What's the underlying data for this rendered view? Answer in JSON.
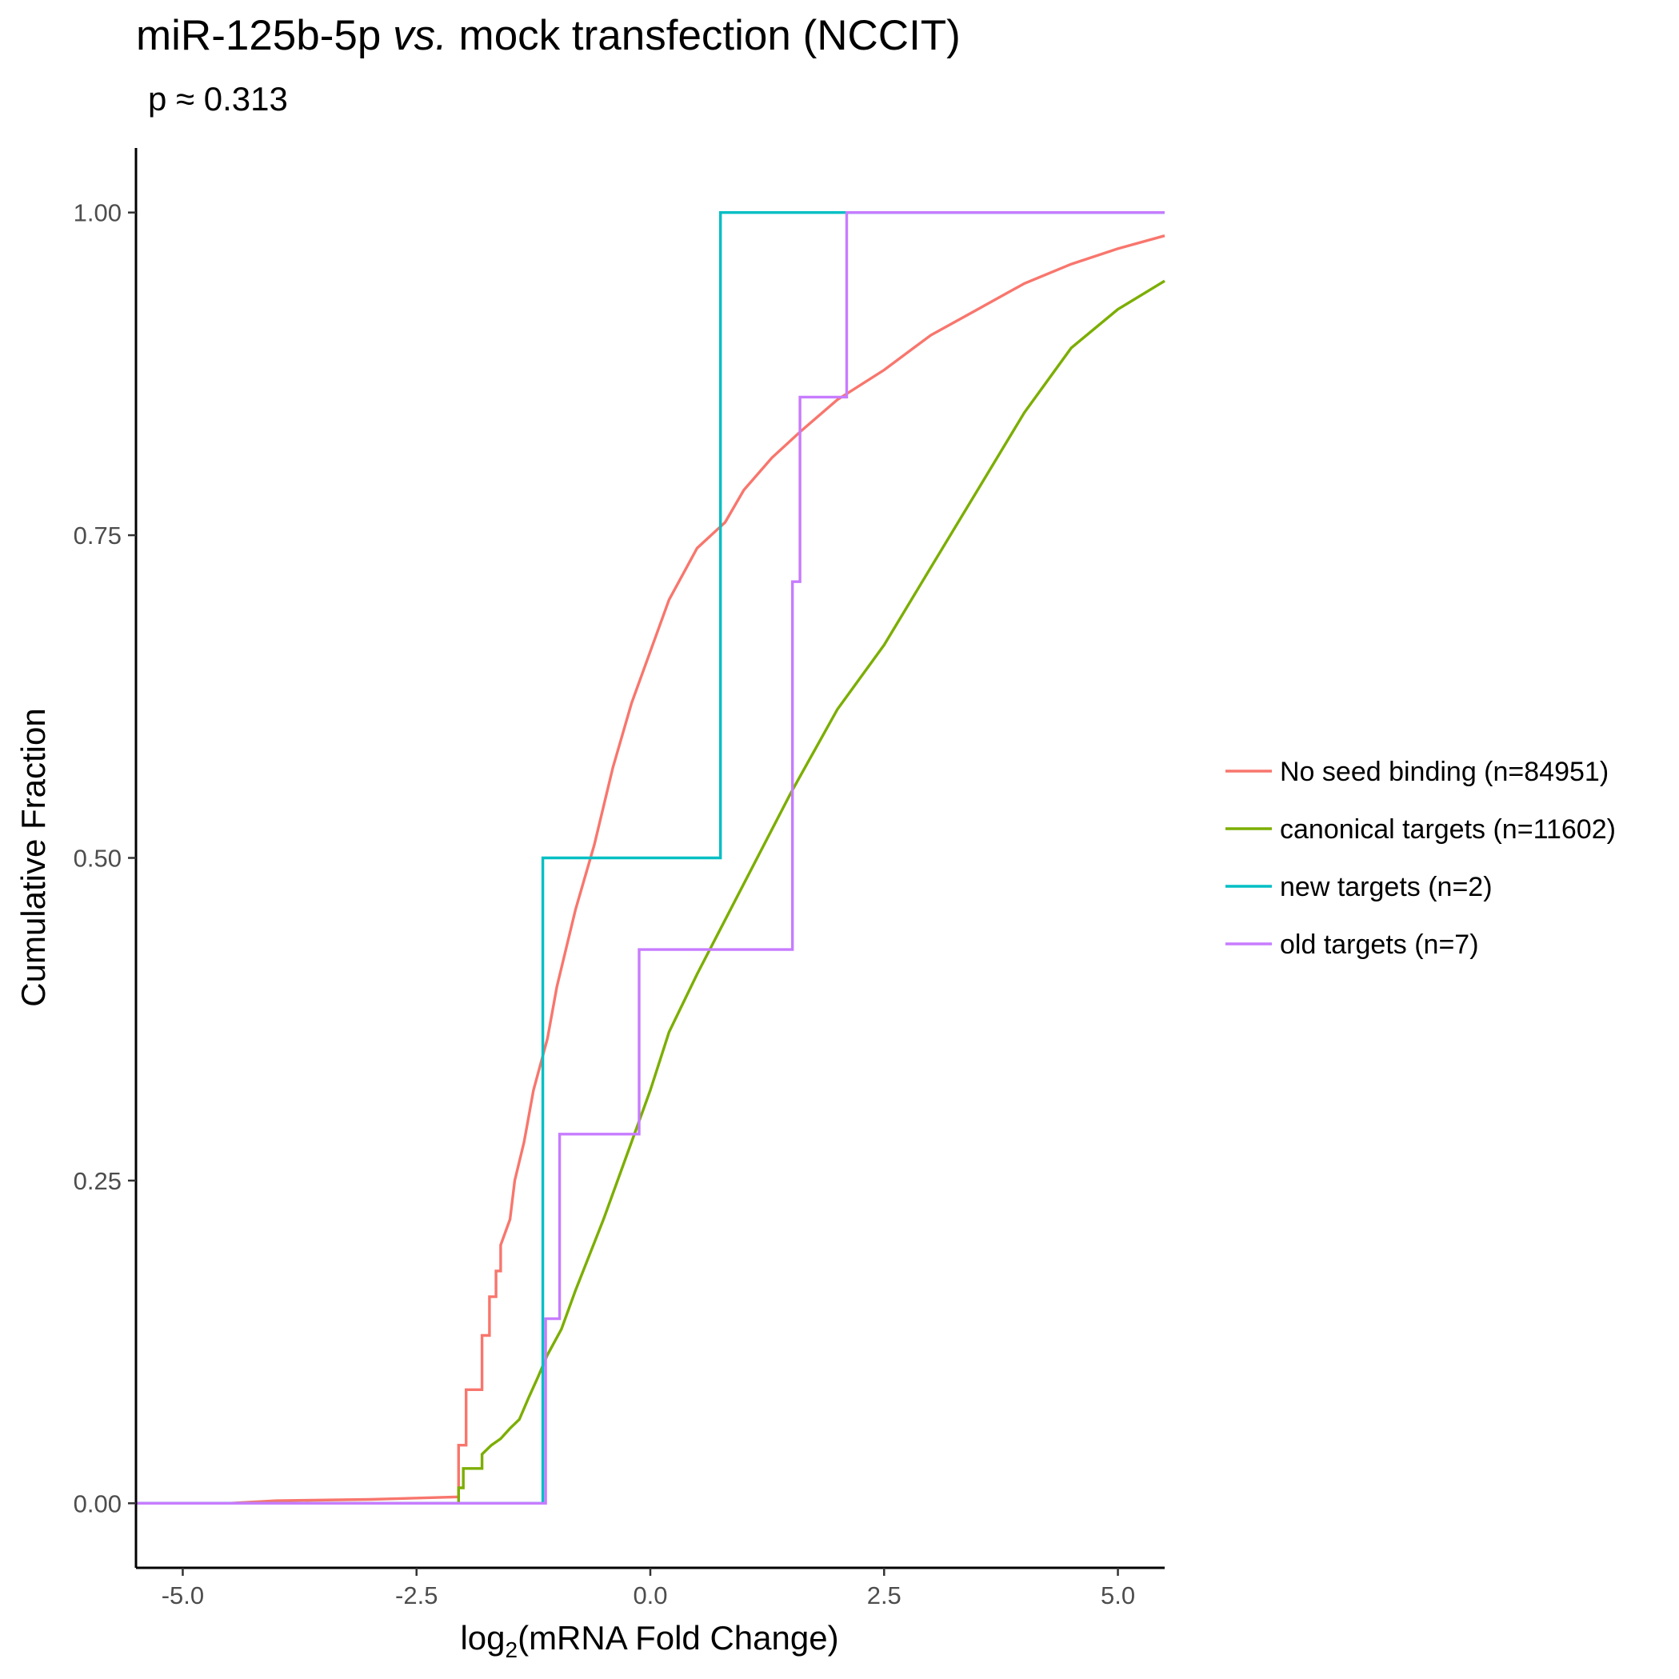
{
  "chart_data": {
    "type": "line",
    "title": {
      "part1": "miR-125b-5p ",
      "part2_italic": "vs.",
      "part3": " mock transfection (NCCIT)"
    },
    "subtitle": "p ≈ 0.313",
    "xlabel": {
      "prefix": "log",
      "subscript": "2",
      "suffix": "(mRNA Fold Change)"
    },
    "ylabel": "Cumulative Fraction",
    "xlim": [
      -5.5,
      5.5
    ],
    "ylim": [
      -0.05,
      1.05
    ],
    "x_ticks": [
      -5.0,
      -2.5,
      0.0,
      2.5,
      5.0
    ],
    "x_tick_labels": [
      "-5.0",
      "-2.5",
      "0.0",
      "2.5",
      "5.0"
    ],
    "y_ticks": [
      0.0,
      0.25,
      0.5,
      0.75,
      1.0
    ],
    "y_tick_labels": [
      "0.00",
      "0.25",
      "0.50",
      "0.75",
      "1.00"
    ],
    "grid": false,
    "legend_position": "right",
    "series": [
      {
        "name": "No seed binding (n=84951)",
        "color": "#F8766D",
        "step": false,
        "points": [
          [
            -5.5,
            0.0
          ],
          [
            -4.5,
            0.0
          ],
          [
            -4.0,
            0.002
          ],
          [
            -3.0,
            0.003
          ],
          [
            -2.05,
            0.005
          ],
          [
            -2.05,
            0.045
          ],
          [
            -1.97,
            0.045
          ],
          [
            -1.97,
            0.088
          ],
          [
            -1.8,
            0.088
          ],
          [
            -1.8,
            0.13
          ],
          [
            -1.72,
            0.13
          ],
          [
            -1.72,
            0.16
          ],
          [
            -1.65,
            0.16
          ],
          [
            -1.65,
            0.18
          ],
          [
            -1.6,
            0.18
          ],
          [
            -1.6,
            0.2
          ],
          [
            -1.5,
            0.22
          ],
          [
            -1.45,
            0.25
          ],
          [
            -1.35,
            0.28
          ],
          [
            -1.25,
            0.32
          ],
          [
            -1.1,
            0.36
          ],
          [
            -1.0,
            0.4
          ],
          [
            -0.8,
            0.46
          ],
          [
            -0.6,
            0.51
          ],
          [
            -0.4,
            0.57
          ],
          [
            -0.2,
            0.62
          ],
          [
            0.0,
            0.66
          ],
          [
            0.2,
            0.7
          ],
          [
            0.5,
            0.74
          ],
          [
            0.8,
            0.76
          ],
          [
            1.0,
            0.785
          ],
          [
            1.3,
            0.81
          ],
          [
            1.6,
            0.83
          ],
          [
            2.0,
            0.855
          ],
          [
            2.5,
            0.878
          ],
          [
            3.0,
            0.905
          ],
          [
            3.5,
            0.925
          ],
          [
            4.0,
            0.945
          ],
          [
            4.5,
            0.96
          ],
          [
            5.0,
            0.972
          ],
          [
            5.5,
            0.982
          ]
        ]
      },
      {
        "name": "canonical targets (n=11602)",
        "color": "#7CAE00",
        "step": false,
        "points": [
          [
            -5.5,
            0.0
          ],
          [
            -2.05,
            0.0
          ],
          [
            -2.05,
            0.012
          ],
          [
            -2.0,
            0.012
          ],
          [
            -2.0,
            0.027
          ],
          [
            -1.8,
            0.027
          ],
          [
            -1.8,
            0.038
          ],
          [
            -1.7,
            0.045
          ],
          [
            -1.6,
            0.05
          ],
          [
            -1.5,
            0.058
          ],
          [
            -1.4,
            0.065
          ],
          [
            -1.3,
            0.082
          ],
          [
            -1.2,
            0.098
          ],
          [
            -1.1,
            0.115
          ],
          [
            -0.95,
            0.135
          ],
          [
            -0.8,
            0.165
          ],
          [
            -0.5,
            0.22
          ],
          [
            -0.2,
            0.28
          ],
          [
            0.0,
            0.32
          ],
          [
            0.2,
            0.365
          ],
          [
            0.5,
            0.41
          ],
          [
            1.0,
            0.48
          ],
          [
            1.5,
            0.55
          ],
          [
            2.0,
            0.615
          ],
          [
            2.5,
            0.665
          ],
          [
            3.0,
            0.725
          ],
          [
            3.5,
            0.785
          ],
          [
            4.0,
            0.845
          ],
          [
            4.5,
            0.895
          ],
          [
            5.0,
            0.925
          ],
          [
            5.5,
            0.947
          ]
        ]
      },
      {
        "name": "new targets (n=2)",
        "color": "#00BFC4",
        "step": true,
        "points": [
          [
            -5.5,
            0.0
          ],
          [
            -1.15,
            0.0
          ],
          [
            -1.15,
            0.5
          ],
          [
            0.75,
            0.5
          ],
          [
            0.75,
            1.0
          ],
          [
            5.5,
            1.0
          ]
        ]
      },
      {
        "name": "old targets (n=7)",
        "color": "#C77CFF",
        "step": true,
        "points": [
          [
            -5.5,
            0.0
          ],
          [
            -1.12,
            0.0
          ],
          [
            -1.12,
            0.143
          ],
          [
            -0.97,
            0.143
          ],
          [
            -0.97,
            0.286
          ],
          [
            -0.12,
            0.286
          ],
          [
            -0.12,
            0.429
          ],
          [
            1.52,
            0.429
          ],
          [
            1.52,
            0.714
          ],
          [
            1.6,
            0.714
          ],
          [
            1.6,
            0.857
          ],
          [
            2.1,
            0.857
          ],
          [
            2.1,
            1.0
          ],
          [
            5.5,
            1.0
          ]
        ]
      }
    ]
  }
}
